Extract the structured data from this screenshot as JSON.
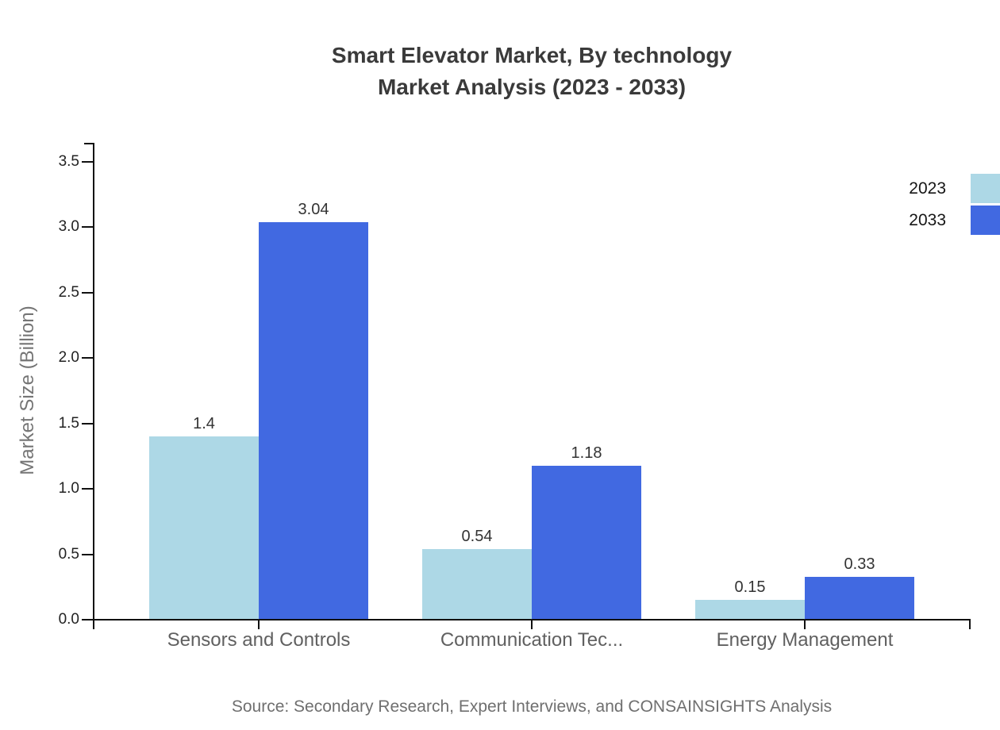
{
  "chart_data": {
    "type": "bar",
    "title_line1": "Smart Elevator Market, By technology",
    "title_line2": "Market Analysis (2023 - 2033)",
    "ylabel": "Market Size (Billion)",
    "xlabel": "",
    "categories": [
      "Sensors and Controls",
      "Communication Tec...",
      "Energy Management"
    ],
    "series": [
      {
        "name": "2023",
        "color": "#add8e6",
        "values": [
          1.4,
          0.54,
          0.15
        ]
      },
      {
        "name": "2033",
        "color": "#4169e1",
        "values": [
          3.04,
          1.18,
          0.33
        ]
      }
    ],
    "ylim": [
      0,
      3.5
    ],
    "yticks": [
      "0.0",
      "0.5",
      "1.0",
      "1.5",
      "2.0",
      "2.5",
      "3.0",
      "3.5"
    ],
    "grid": false,
    "legend_position": "right",
    "axis_color": "#111111"
  },
  "source": "Source: Secondary Research, Expert Interviews, and CONSAINSIGHTS Analysis"
}
